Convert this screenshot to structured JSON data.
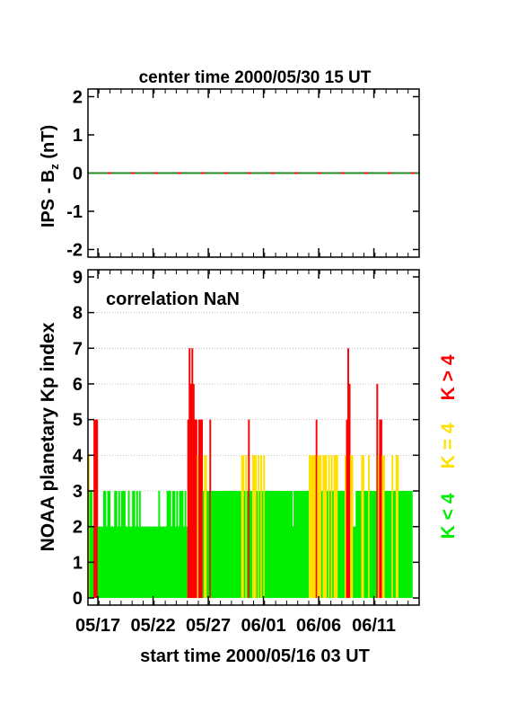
{
  "top_title": "center time 2000/05/30 15 UT",
  "bottom_title": "start time 2000/05/16 03 UT",
  "colors": {
    "red": "#ff0000",
    "yellow": "#ffe000",
    "green": "#00ee00",
    "dash_green": "#228b22",
    "grid": "#aaaaaa"
  },
  "chart_data": [
    {
      "type": "line",
      "title": "center time 2000/05/30 15 UT",
      "ylabel_main": "IPS - B",
      "ylabel_sub": "z",
      "ylabel_unit": " (nT)",
      "ylim": [
        -2.2,
        2.2
      ],
      "yticks": [
        -2,
        -1,
        0,
        1,
        2
      ],
      "xlim_days": 30,
      "series": [
        {
          "values_constant": 0
        }
      ]
    },
    {
      "type": "bar",
      "xlabel": "start time 2000/05/16 03 UT",
      "ylabel": "NOAA planetary Kp index",
      "annotation": "correlation NaN",
      "ylim": [
        -0.2,
        9.2
      ],
      "yticks": [
        0,
        1,
        2,
        3,
        4,
        5,
        6,
        7,
        8,
        9
      ],
      "xticks": [
        {
          "label": "05/17",
          "day": 0.9
        },
        {
          "label": "05/22",
          "day": 5.9
        },
        {
          "label": "05/27",
          "day": 10.9
        },
        {
          "label": "06/01",
          "day": 15.9
        },
        {
          "label": "06/06",
          "day": 20.9
        },
        {
          "label": "06/11",
          "day": 25.9
        }
      ],
      "bar_width_days": 0.125,
      "kp_3hour": [
        4,
        3,
        3,
        2,
        5,
        5,
        5,
        2,
        2,
        2,
        2,
        3,
        3,
        2,
        3,
        3,
        2,
        2,
        2,
        3,
        3,
        2,
        3,
        2,
        3,
        3,
        3,
        2,
        2,
        3,
        2,
        2,
        3,
        3,
        2,
        3,
        2,
        3,
        2,
        2,
        2,
        2,
        2,
        2,
        2,
        2,
        2,
        2,
        2,
        2,
        2,
        3,
        2,
        2,
        2,
        2,
        2,
        3,
        3,
        3,
        2,
        3,
        3,
        2,
        3,
        2,
        3,
        3,
        3,
        2,
        3,
        2,
        5,
        7,
        6,
        7,
        6,
        5,
        5,
        4,
        5,
        5,
        5,
        3,
        4,
        4,
        3,
        3,
        5,
        3,
        3,
        3,
        3,
        3,
        3,
        3,
        3,
        3,
        3,
        3,
        3,
        3,
        3,
        3,
        3,
        3,
        3,
        3,
        3,
        3,
        3,
        4,
        4,
        3,
        4,
        3,
        5,
        3,
        3,
        4,
        4,
        4,
        3,
        4,
        3,
        4,
        3,
        4,
        3,
        3,
        3,
        3,
        3,
        3,
        3,
        3,
        3,
        3,
        3,
        3,
        3,
        3,
        3,
        3,
        3,
        3,
        3,
        3,
        2,
        3,
        3,
        3,
        3,
        3,
        3,
        3,
        3,
        3,
        3,
        3,
        4,
        4,
        4,
        4,
        4,
        5,
        4,
        4,
        4,
        3,
        4,
        4,
        4,
        3,
        4,
        3,
        4,
        3,
        4,
        4,
        4,
        3,
        3,
        3,
        3,
        3,
        4,
        5,
        7,
        6,
        4,
        4,
        2,
        2,
        3,
        3,
        3,
        3,
        4,
        4,
        3,
        3,
        3,
        4,
        3,
        3,
        3,
        3,
        3,
        6,
        4,
        5,
        5,
        4,
        4,
        3,
        3,
        3,
        3,
        3,
        4,
        3,
        3,
        4,
        4,
        3,
        3,
        3,
        3,
        3,
        3,
        3,
        3,
        3,
        3
      ],
      "legend": [
        {
          "label": "K > 4",
          "color": "#ff0000"
        },
        {
          "label": "K = 4",
          "color": "#ffe000"
        },
        {
          "label": "K < 4",
          "color": "#00ee00"
        }
      ]
    }
  ]
}
